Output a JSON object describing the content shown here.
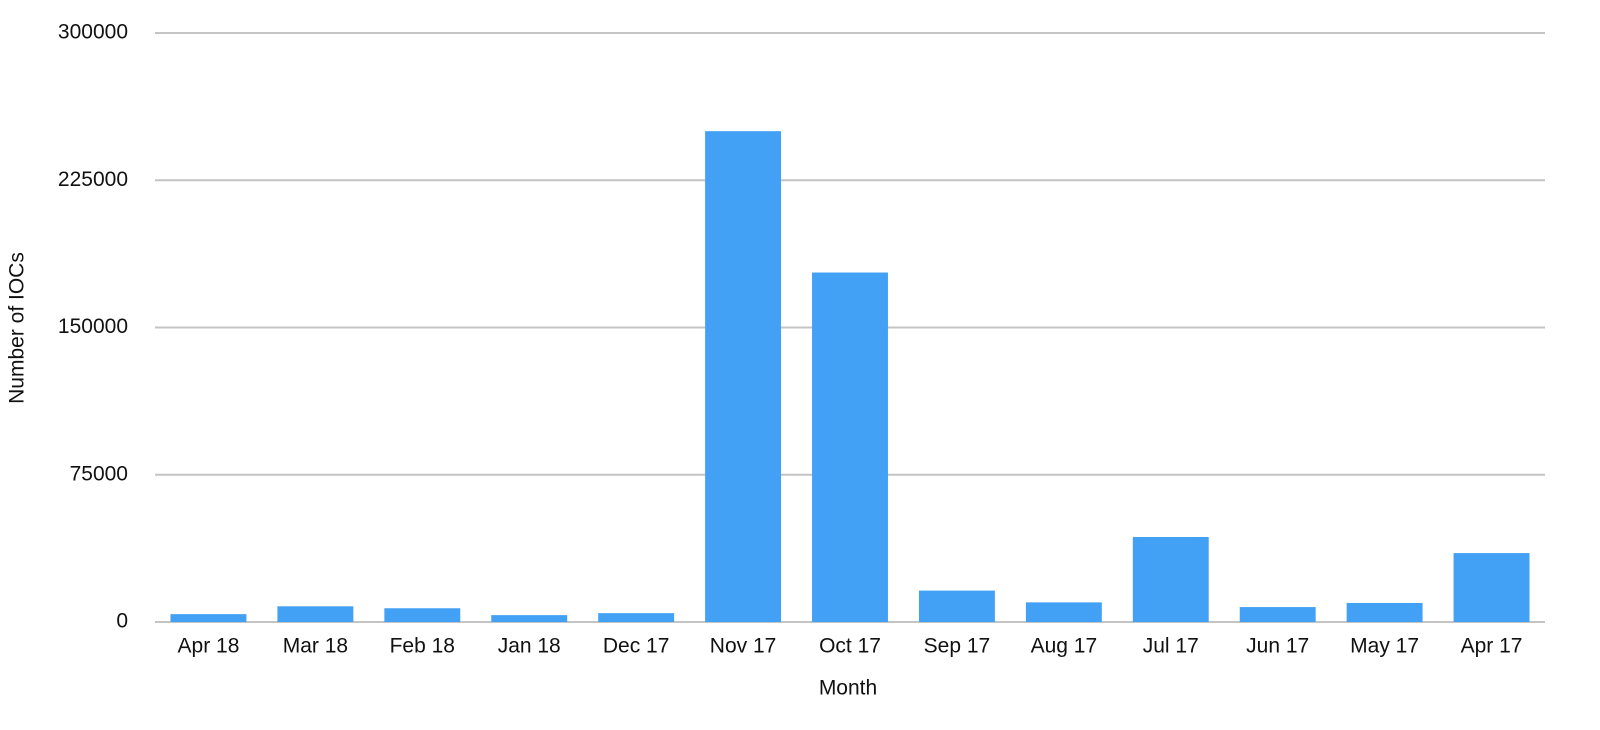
{
  "chart_data": {
    "type": "bar",
    "x_label": "Month",
    "y_label": "Number of IOCs",
    "categories": [
      "Apr 18",
      "Mar 18",
      "Feb 18",
      "Jan 18",
      "Dec 17",
      "Nov 17",
      "Oct 17",
      "Sep 17",
      "Aug 17",
      "Jul 17",
      "Jun 17",
      "May 17",
      "Apr 17"
    ],
    "values": [
      4000,
      8000,
      7000,
      3500,
      4500,
      250000,
      178000,
      16000,
      10000,
      43300,
      7600,
      9700,
      35100
    ],
    "color": "#42a0f5",
    "ylim": [
      0,
      300000
    ],
    "yticks": [
      0,
      75000,
      150000,
      225000,
      300000
    ],
    "grid": true
  }
}
